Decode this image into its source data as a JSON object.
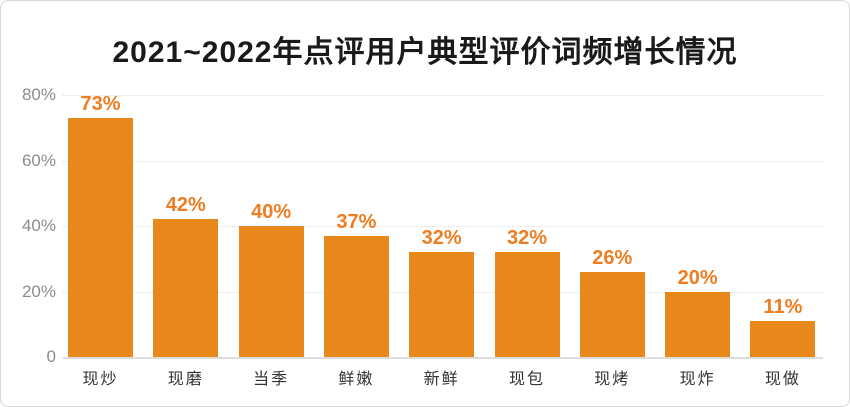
{
  "chart_data": {
    "type": "bar",
    "title": "2021~2022年点评用户典型评价词频增长情况",
    "categories": [
      "现炒",
      "现磨",
      "当季",
      "鲜嫩",
      "新鲜",
      "现包",
      "现烤",
      "现炸",
      "现做"
    ],
    "values": [
      73,
      42,
      40,
      37,
      32,
      32,
      26,
      20,
      11
    ],
    "value_labels": [
      "73%",
      "42%",
      "40%",
      "37%",
      "32%",
      "32%",
      "26%",
      "20%",
      "11%"
    ],
    "xlabel": "",
    "ylabel": "",
    "ylim": [
      0,
      80
    ],
    "yticks": [
      {
        "label": "80%",
        "value": 80
      },
      {
        "label": "60%",
        "value": 60
      },
      {
        "label": "40%",
        "value": 40
      },
      {
        "label": "20%",
        "value": 20
      },
      {
        "label": "0",
        "value": 0
      }
    ],
    "grid": "horizontal-dotted",
    "legend": "none",
    "colors": {
      "bar": "#e8871c",
      "value_label": "#ed7d20",
      "axis_tick": "#8c8c8c",
      "category_label": "#333333",
      "gridline": "#dedede",
      "baseline": "#dcdcdc",
      "title": "#1a1a1a",
      "card_border": "#d8d8d8",
      "background": "#ffffff"
    }
  }
}
